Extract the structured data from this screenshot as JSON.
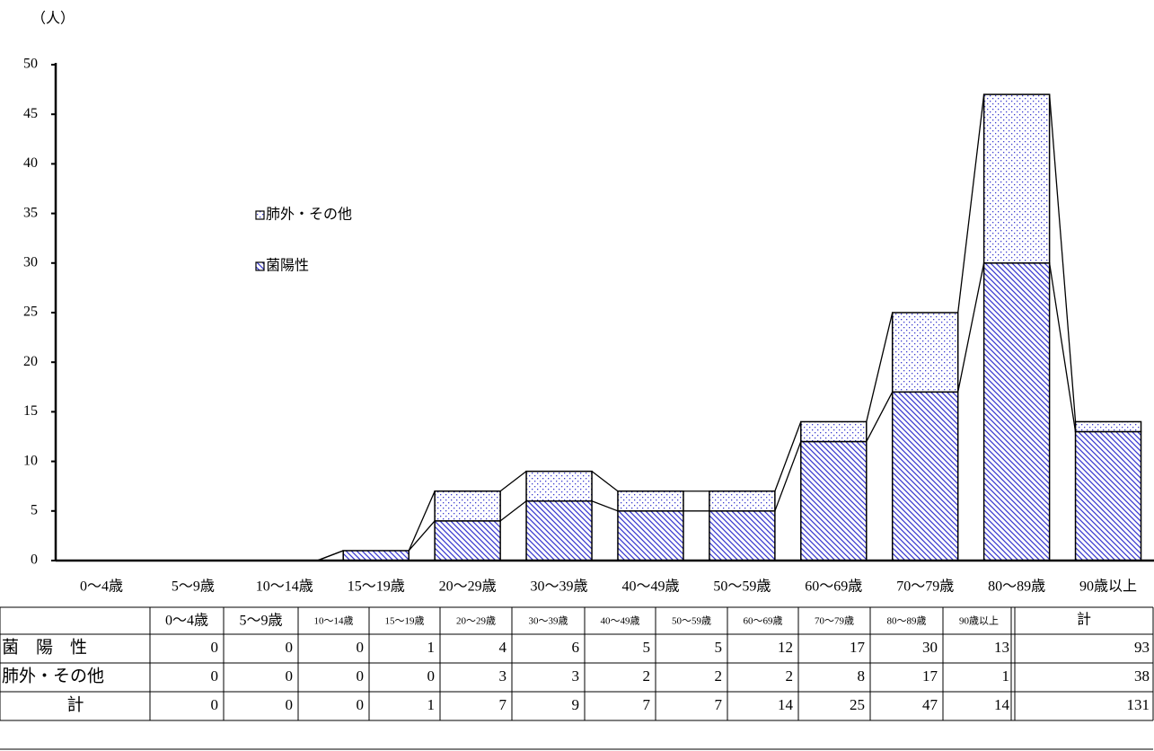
{
  "chart_data": {
    "type": "bar",
    "stacked": true,
    "y_label": "（人）",
    "categories": [
      "0～4歳",
      "5～9歳",
      "10～14歳",
      "15～19歳",
      "20～29歳",
      "30～39歳",
      "40～49歳",
      "50～59歳",
      "60～69歳",
      "70～79歳",
      "80～89歳",
      "90歳以上"
    ],
    "series": [
      {
        "name": "菌陽性",
        "color": "#3a3ad0",
        "pattern": "hatch",
        "values": [
          0,
          0,
          0,
          1,
          4,
          6,
          5,
          5,
          12,
          17,
          30,
          13
        ]
      },
      {
        "name": "肺外・その他",
        "color": "#3a3ad0",
        "pattern": "dots",
        "values": [
          0,
          0,
          0,
          0,
          3,
          3,
          2,
          2,
          2,
          8,
          17,
          1
        ]
      }
    ],
    "ylim": [
      0,
      50
    ],
    "yticks": [
      0,
      5,
      10,
      15,
      20,
      25,
      30,
      35,
      40,
      45,
      50
    ],
    "grid": false,
    "series_lines": true
  },
  "table": {
    "row_labels": [
      "菌　陽　性",
      "肺外・その他",
      "計"
    ],
    "total_label": "計",
    "row_totals": [
      93,
      38,
      131
    ],
    "column_totals": [
      0,
      0,
      0,
      1,
      7,
      9,
      7,
      7,
      14,
      25,
      47,
      14
    ]
  }
}
